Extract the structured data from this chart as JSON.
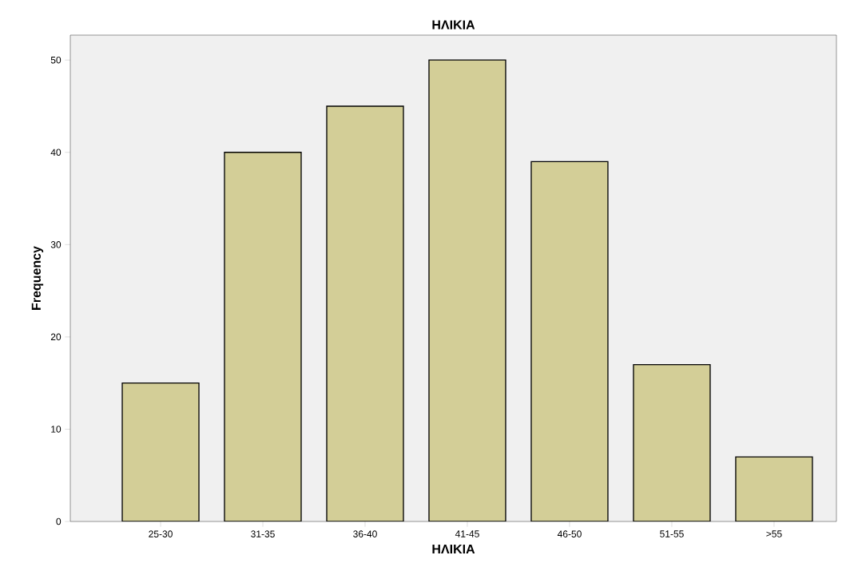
{
  "chart_data": {
    "type": "bar",
    "title": "ΗΛΙΚΙΑ",
    "xlabel": "ΗΛΙΚΙΑ",
    "ylabel": "Frequency",
    "categories": [
      "25-30",
      "31-35",
      "36-40",
      "41-45",
      "46-50",
      "51-55",
      ">55"
    ],
    "values": [
      15,
      40,
      45,
      50,
      39,
      17,
      7
    ],
    "color": "#d3ce97",
    "ylim": [
      0,
      52.7
    ],
    "yticks": [
      0,
      10,
      20,
      30,
      40,
      50
    ]
  }
}
